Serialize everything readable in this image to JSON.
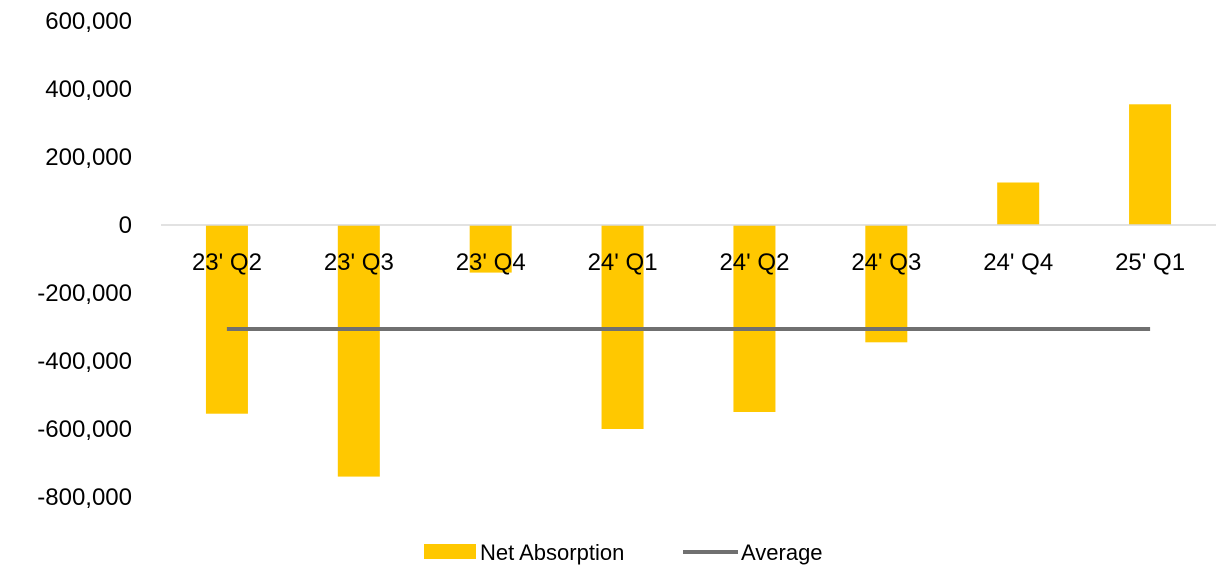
{
  "chart_data": {
    "type": "bar",
    "title": "",
    "xlabel": "",
    "ylabel": "",
    "categories": [
      "23' Q2",
      "23' Q3",
      "23' Q4",
      "24' Q1",
      "24' Q2",
      "24' Q3",
      "24' Q4",
      "25' Q1"
    ],
    "series": [
      {
        "name": "Net Absorption",
        "type": "bar",
        "color": "#FFC800",
        "values": [
          -555000,
          -740000,
          -140000,
          -600000,
          -550000,
          -345000,
          125000,
          355000
        ]
      },
      {
        "name": "Average",
        "type": "line",
        "color": "#707070",
        "values": [
          -306000,
          -306000,
          -306000,
          -306000,
          -306000,
          -306000,
          -306000,
          -306000
        ]
      }
    ],
    "ylim": [
      -800000,
      600000
    ],
    "yticks": [
      600000,
      400000,
      200000,
      0,
      -200000,
      -400000,
      -600000,
      -800000
    ],
    "ytick_labels": [
      "600,000",
      "400,000",
      "200,000",
      "0",
      "-200,000",
      "-400,000",
      "-600,000",
      "-800,000"
    ],
    "grid": false,
    "legend_position": "bottom"
  }
}
